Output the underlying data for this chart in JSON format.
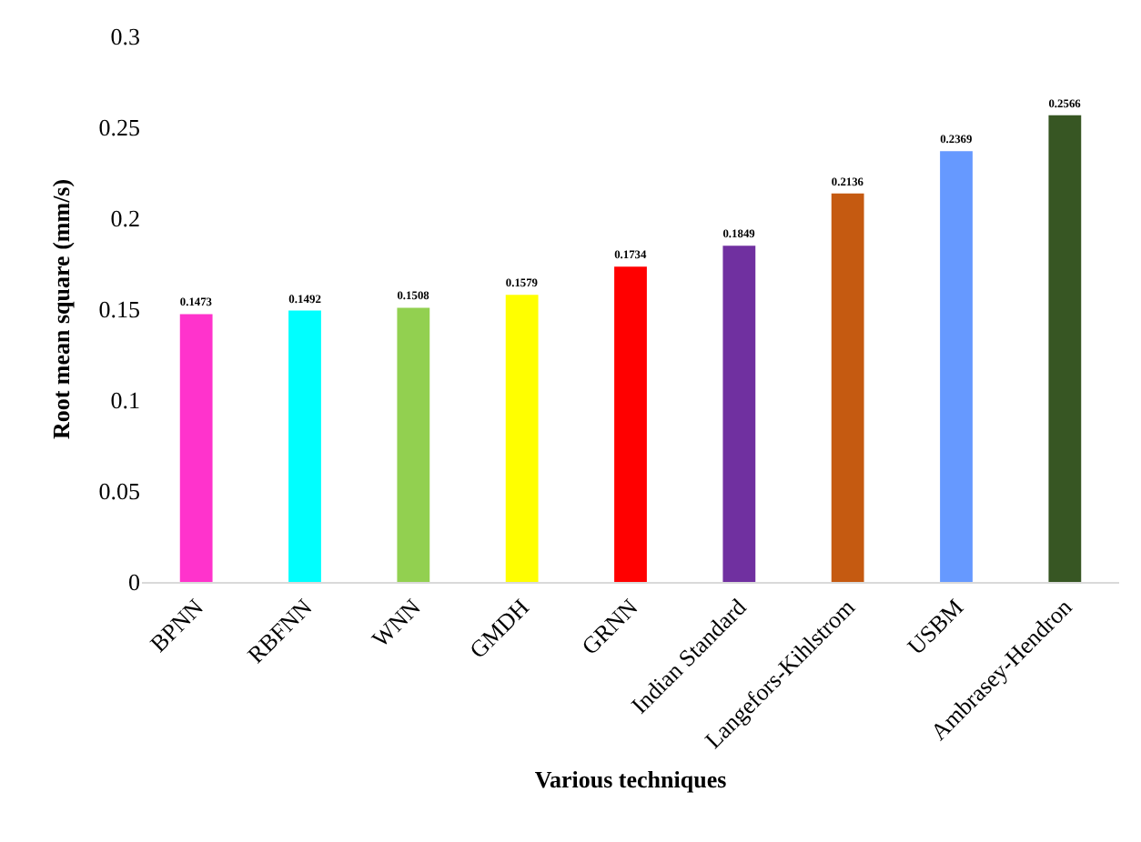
{
  "chart_data": {
    "type": "bar",
    "xlabel": "Various techniques",
    "ylabel": "Root mean square (mm/s)",
    "categories": [
      "BPNN",
      "RBFNN",
      "WNN",
      "GMDH",
      "GRNN",
      "Indian Standard",
      "Langefors-Kihlstrom",
      "USBM",
      "Ambrasey-Hendron"
    ],
    "values": [
      0.1473,
      0.1492,
      0.1508,
      0.1579,
      0.1734,
      0.1849,
      0.2136,
      0.2369,
      0.2566
    ],
    "colors": [
      "#ff33cc",
      "#00ffff",
      "#92d050",
      "#ffff00",
      "#ff0000",
      "#7030a0",
      "#c55a11",
      "#6699ff",
      "#375623"
    ],
    "ylim": [
      0,
      0.3
    ],
    "yticks": [
      0,
      0.05,
      0.1,
      0.15,
      0.2,
      0.25,
      0.3
    ],
    "grid": false,
    "legend": false,
    "data_labels": true
  }
}
